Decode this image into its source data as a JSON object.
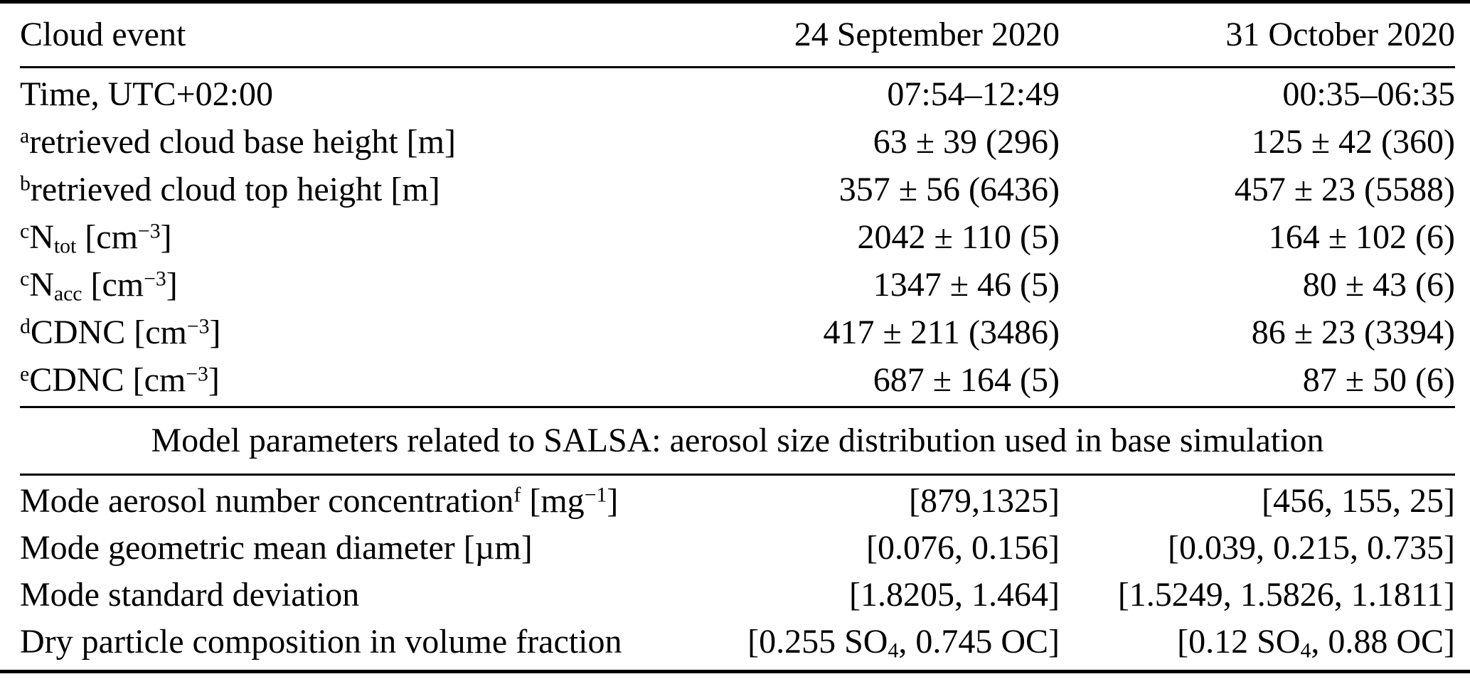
{
  "header": {
    "cloud_event_label": "Cloud event",
    "event1_date": "24 September 2020",
    "event2_date": "31 October 2020"
  },
  "observations": {
    "rows": [
      {
        "label": "Time, UTC+02:00",
        "event1": "07:54–12:49",
        "event2": "00:35–06:35"
      },
      {
        "label_rich": [
          [
            "sup",
            "a"
          ],
          [
            "t",
            "retrieved cloud base height [m]"
          ]
        ],
        "event1": "63 ± 39 (296)",
        "event2": "125 ± 42 (360)"
      },
      {
        "label_rich": [
          [
            "sup",
            "b"
          ],
          [
            "t",
            "retrieved cloud top height [m]"
          ]
        ],
        "event1": "357 ± 56 (6436)",
        "event2": "457 ± 23 (5588)"
      },
      {
        "label_rich": [
          [
            "sup",
            "c"
          ],
          [
            "t",
            "N"
          ],
          [
            "sub",
            "tot"
          ],
          [
            "t",
            " [cm"
          ],
          [
            "sup",
            "−3"
          ],
          [
            "t",
            "]"
          ]
        ],
        "event1": "2042 ± 110 (5)",
        "event2": "164 ± 102 (6)"
      },
      {
        "label_rich": [
          [
            "sup",
            "c"
          ],
          [
            "t",
            "N"
          ],
          [
            "sub",
            "acc"
          ],
          [
            "t",
            " [cm"
          ],
          [
            "sup",
            "−3"
          ],
          [
            "t",
            "]"
          ]
        ],
        "event1": "1347 ± 46 (5)",
        "event2": "80 ± 43 (6)"
      },
      {
        "label_rich": [
          [
            "sup",
            "d"
          ],
          [
            "t",
            "CDNC [cm"
          ],
          [
            "sup",
            "−3"
          ],
          [
            "t",
            "]"
          ]
        ],
        "event1": "417 ± 211 (3486)",
        "event2": "86 ± 23 (3394)"
      },
      {
        "label_rich": [
          [
            "sup",
            "e"
          ],
          [
            "t",
            "CDNC [cm"
          ],
          [
            "sup",
            "−3"
          ],
          [
            "t",
            "]"
          ]
        ],
        "event1": "687 ± 164 (5)",
        "event2": "87 ± 50 (6)"
      }
    ]
  },
  "model_section": {
    "heading": "Model parameters related to SALSA: aerosol size distribution used in base simulation",
    "rows": [
      {
        "label_rich": [
          [
            "t",
            "Mode aerosol number concentration"
          ],
          [
            "sup",
            "f"
          ],
          [
            "t",
            " [mg"
          ],
          [
            "sup",
            "−1"
          ],
          [
            "t",
            "]"
          ]
        ],
        "event1": "[879,1325]",
        "event2": "[456, 155, 25]"
      },
      {
        "label": "Mode geometric mean diameter [µm]",
        "event1": "[0.076, 0.156]",
        "event2": "[0.039, 0.215, 0.735]"
      },
      {
        "label": "Mode standard deviation",
        "event1": "[1.8205, 1.464]",
        "event2": "[1.5249, 1.5826, 1.1811]"
      },
      {
        "label": "Dry particle composition in volume fraction",
        "event1_rich": [
          [
            "t",
            "[0.255 SO"
          ],
          [
            "sub",
            "4"
          ],
          [
            "t",
            ", 0.745 OC]"
          ]
        ],
        "event2_rich": [
          [
            "t",
            "[0.12 SO"
          ],
          [
            "sub",
            "4"
          ],
          [
            "t",
            ", 0.88 OC]"
          ]
        ]
      }
    ]
  }
}
